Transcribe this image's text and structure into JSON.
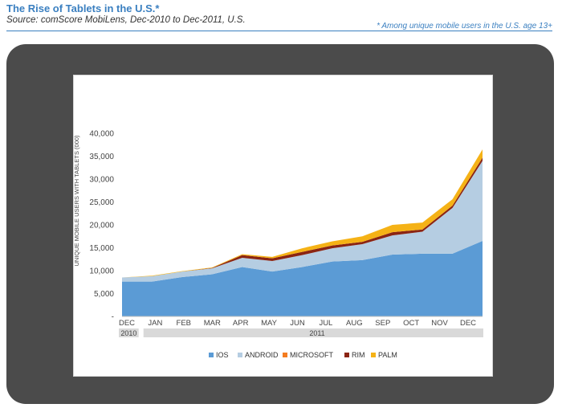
{
  "header": {
    "title": "The Rise of Tablets in the U.S.*",
    "source": "Source: comScore MobiLens, Dec-2010 to Dec-2011, U.S.",
    "note": "* Among unique mobile users in the U.S. age 13+"
  },
  "chart_data": {
    "type": "area",
    "stacked": true,
    "title": "",
    "ylabel": "UNIQUE MOBILE USERS WITH TABLETS (000)",
    "xlabel": "",
    "ylim": [
      0,
      40000
    ],
    "yticks": [
      0,
      5000,
      10000,
      15000,
      20000,
      25000,
      30000,
      35000,
      40000
    ],
    "ytick_labels": [
      "-",
      "5,000",
      "10,000",
      "15,000",
      "20,000",
      "25,000",
      "30,000",
      "35,000",
      "40,000"
    ],
    "categories": [
      "DEC",
      "JAN",
      "FEB",
      "MAR",
      "APR",
      "MAY",
      "JUN",
      "JUL",
      "AUG",
      "SEP",
      "OCT",
      "NOV",
      "DEC"
    ],
    "year_groups": [
      {
        "label": "2010",
        "start": 0,
        "end": 0
      },
      {
        "label": "2011",
        "start": 1,
        "end": 12
      }
    ],
    "legend_position": "bottom",
    "series": [
      {
        "name": "IOS",
        "color": "#5b9bd5",
        "values": [
          7600,
          7600,
          8600,
          9200,
          10800,
          9800,
          10800,
          12000,
          12300,
          13500,
          13700,
          13700,
          16500
        ]
      },
      {
        "name": "ANDROID",
        "color": "#b5cde2",
        "values": [
          900,
          1200,
          1200,
          1300,
          2000,
          2300,
          2600,
          2900,
          3500,
          4200,
          4800,
          10000,
          17500
        ]
      },
      {
        "name": "MICROSOFT",
        "color": "#f47c20",
        "values": [
          0,
          0,
          0,
          0,
          0,
          0,
          0,
          0,
          0,
          0,
          0,
          0,
          0
        ]
      },
      {
        "name": "RIM",
        "color": "#8b2513",
        "values": [
          0,
          0,
          0,
          100,
          600,
          600,
          700,
          600,
          500,
          700,
          500,
          500,
          700
        ]
      },
      {
        "name": "PALM",
        "color": "#f5b216",
        "values": [
          0,
          100,
          100,
          100,
          200,
          300,
          800,
          900,
          1200,
          1600,
          1500,
          1400,
          1800
        ]
      }
    ]
  }
}
